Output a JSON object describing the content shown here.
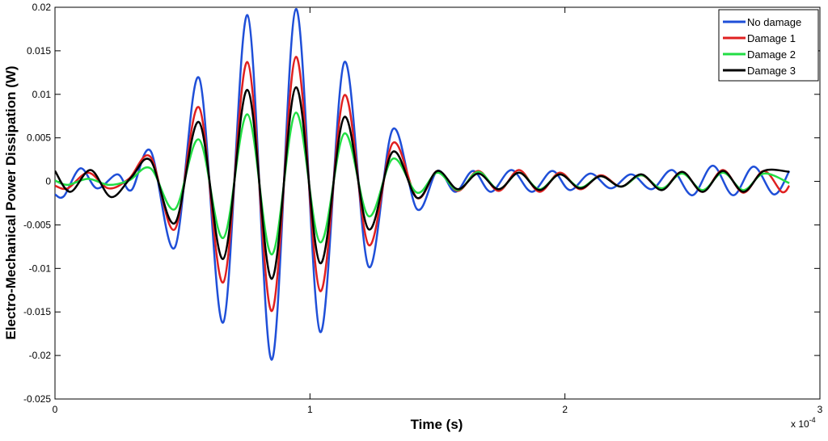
{
  "chart_data": {
    "type": "line",
    "title": "",
    "xlabel": "Time (s)",
    "ylabel": "Electro-Mechanical Power Dissipation (W)",
    "x_multiplier_label": "x 10",
    "x_multiplier_exponent": "-4",
    "xlim": [
      0,
      3
    ],
    "ylim": [
      -0.025,
      0.02
    ],
    "x_ticks": [
      "0",
      "1",
      "2",
      "3"
    ],
    "y_ticks": [
      "0.02",
      "0.015",
      "0.01",
      "0.005",
      "0",
      "-0.005",
      "-0.01",
      "-0.015",
      "-0.02",
      "-0.025"
    ],
    "x_tick_values": [
      0,
      1,
      2,
      3
    ],
    "y_tick_values": [
      0.02,
      0.015,
      0.01,
      0.005,
      0,
      -0.005,
      -0.01,
      -0.015,
      -0.02,
      -0.025
    ],
    "grid": false,
    "legend_position": "top-right",
    "series": [
      {
        "name": "No damage",
        "color": "#1f4fd8",
        "x": [
          0,
          0.035,
          0.1,
          0.165,
          0.245,
          0.3,
          0.375,
          0.47,
          0.565,
          0.66,
          0.755,
          0.85,
          0.945,
          1.04,
          1.135,
          1.23,
          1.325,
          1.42,
          1.5,
          1.57,
          1.64,
          1.71,
          1.79,
          1.87,
          1.95,
          2.02,
          2.1,
          2.18,
          2.26,
          2.34,
          2.42,
          2.5,
          2.58,
          2.66,
          2.74,
          2.82,
          2.88
        ],
        "values": [
          -0.0015,
          -0.0017,
          0.0015,
          -0.0008,
          0.0008,
          -0.001,
          0.0035,
          -0.0076,
          0.0119,
          -0.0162,
          0.0191,
          -0.0205,
          0.0198,
          -0.0173,
          0.0137,
          -0.0098,
          0.006,
          -0.0032,
          0.0012,
          -0.0012,
          0.0012,
          -0.0012,
          0.0013,
          -0.0012,
          0.0012,
          -0.001,
          0.0009,
          -0.0008,
          0.0008,
          -0.0009,
          0.0013,
          -0.0016,
          0.0018,
          -0.0016,
          0.0017,
          -0.0015,
          0.0012
        ]
      },
      {
        "name": "Damage 1",
        "color": "#e02020",
        "x": [
          0,
          0.05,
          0.13,
          0.21,
          0.29,
          0.375,
          0.47,
          0.565,
          0.66,
          0.755,
          0.85,
          0.945,
          1.04,
          1.135,
          1.23,
          1.325,
          1.42,
          1.5,
          1.58,
          1.66,
          1.74,
          1.82,
          1.9,
          1.98,
          2.06,
          2.14,
          2.22,
          2.3,
          2.38,
          2.46,
          2.54,
          2.62,
          2.7,
          2.78,
          2.85,
          2.88
        ],
        "values": [
          -0.0005,
          -0.0008,
          0.001,
          -0.0008,
          0.0003,
          0.0028,
          -0.0055,
          0.0085,
          -0.0116,
          0.0137,
          -0.0149,
          0.0143,
          -0.0126,
          0.0099,
          -0.0073,
          0.0044,
          -0.0019,
          0.0012,
          -0.0011,
          0.0012,
          -0.0011,
          0.0013,
          -0.0012,
          0.001,
          -0.0009,
          0.0007,
          -0.0006,
          0.0007,
          -0.0009,
          0.0011,
          -0.0012,
          0.0013,
          -0.0013,
          0.0012,
          -0.0012,
          -0.0005
        ]
      },
      {
        "name": "Damage 2",
        "color": "#22dd44",
        "x": [
          0,
          0.05,
          0.13,
          0.21,
          0.29,
          0.375,
          0.47,
          0.565,
          0.66,
          0.755,
          0.85,
          0.945,
          1.04,
          1.135,
          1.23,
          1.325,
          1.42,
          1.5,
          1.58,
          1.66,
          1.74,
          1.82,
          1.9,
          1.98,
          2.06,
          2.14,
          2.22,
          2.3,
          2.38,
          2.46,
          2.54,
          2.62,
          2.7,
          2.78,
          2.88
        ],
        "values": [
          0.0001,
          -0.0004,
          0.0003,
          -0.0004,
          0.0001,
          0.0015,
          -0.0032,
          0.0048,
          -0.0065,
          0.0077,
          -0.0084,
          0.0079,
          -0.007,
          0.0055,
          -0.004,
          0.0026,
          -0.0013,
          0.001,
          -0.001,
          0.0011,
          -0.0009,
          0.001,
          -0.0009,
          0.0008,
          -0.0007,
          0.0006,
          -0.0006,
          0.0007,
          -0.0008,
          0.0009,
          -0.001,
          0.001,
          -0.001,
          0.0009,
          -0.0002
        ]
      },
      {
        "name": "Damage 3",
        "color": "#000000",
        "x": [
          0,
          0.06,
          0.14,
          0.22,
          0.3,
          0.375,
          0.47,
          0.565,
          0.66,
          0.755,
          0.85,
          0.945,
          1.04,
          1.135,
          1.23,
          1.325,
          1.42,
          1.5,
          1.58,
          1.66,
          1.74,
          1.82,
          1.9,
          1.98,
          2.06,
          2.14,
          2.22,
          2.3,
          2.38,
          2.46,
          2.54,
          2.62,
          2.7,
          2.78,
          2.88
        ],
        "values": [
          0.0012,
          -0.0012,
          0.0013,
          -0.0018,
          0.0005,
          0.0024,
          -0.0048,
          0.0068,
          -0.0089,
          0.0105,
          -0.0112,
          0.0108,
          -0.0094,
          0.0074,
          -0.0055,
          0.0034,
          -0.0019,
          0.0012,
          -0.0009,
          0.0009,
          -0.0009,
          0.001,
          -0.001,
          0.0008,
          -0.0008,
          0.0006,
          -0.0006,
          0.0008,
          -0.001,
          0.0011,
          -0.0012,
          0.0012,
          -0.0012,
          0.0012,
          0.0011
        ]
      }
    ]
  }
}
